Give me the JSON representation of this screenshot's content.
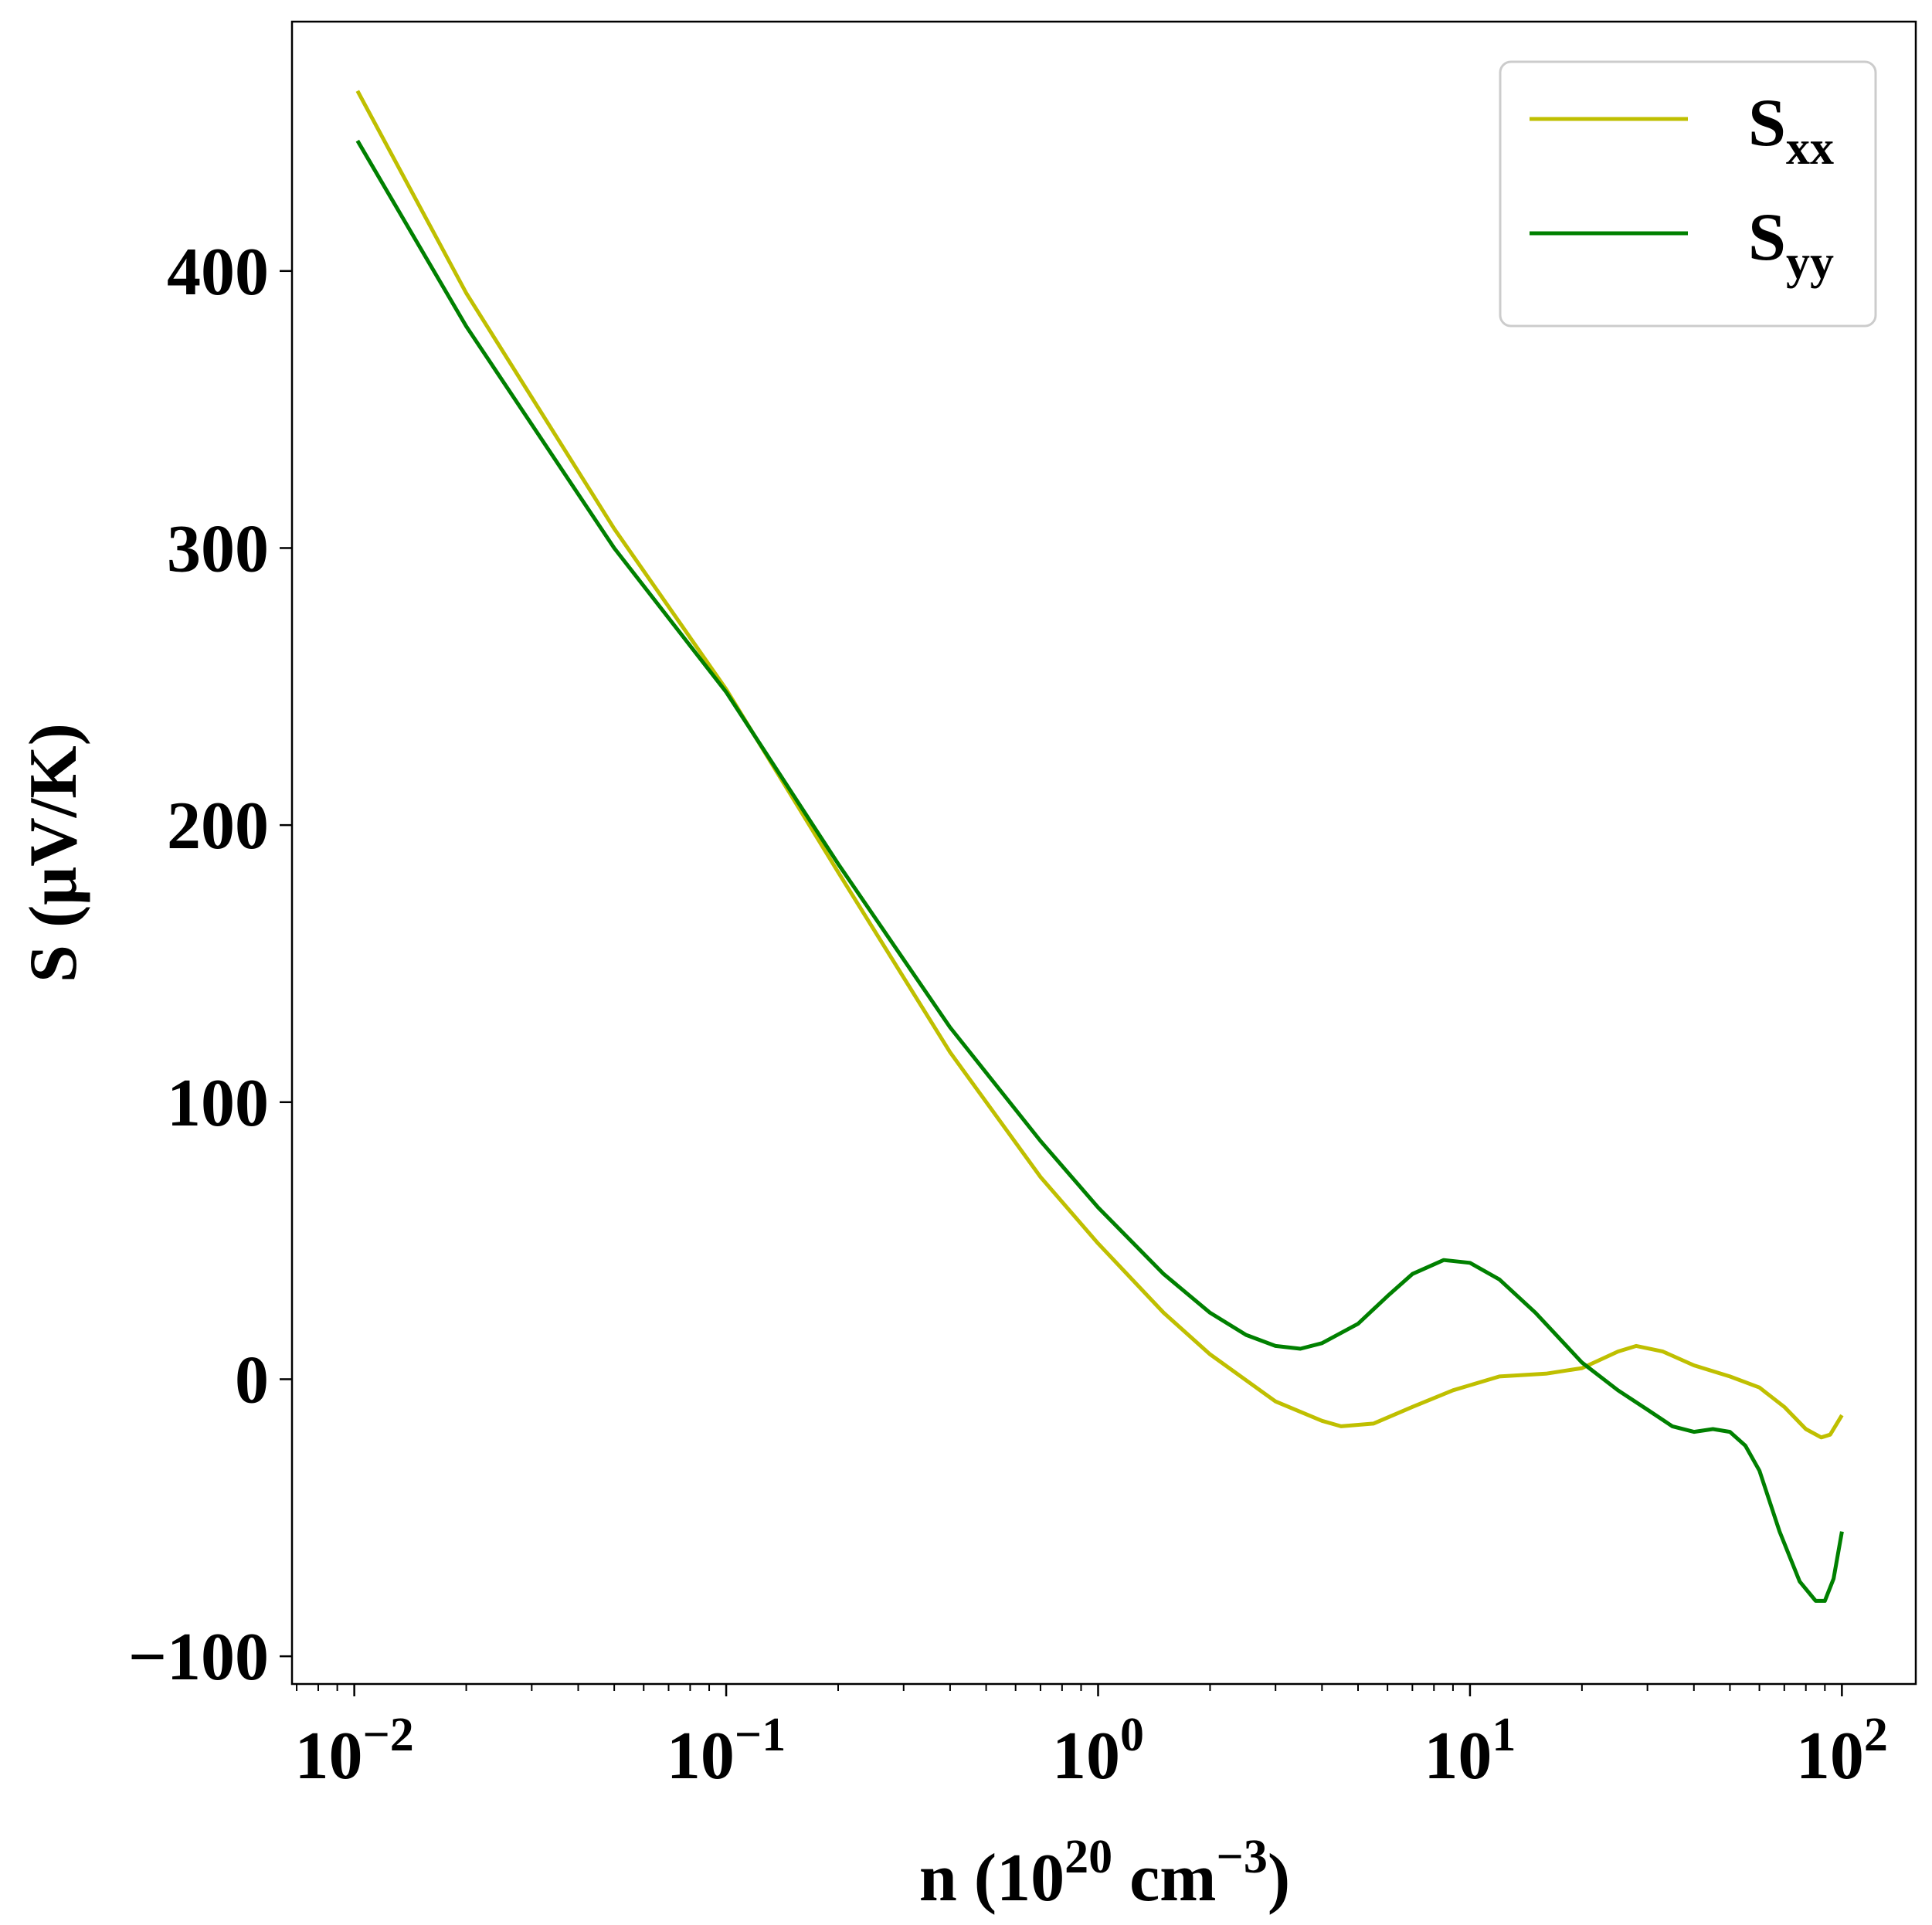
{
  "chart_data": {
    "type": "line",
    "x_scale": "log",
    "xlim": [
      0.0068,
      158
    ],
    "ylim": [
      -110,
      490
    ],
    "xlabel": {
      "base": "n (10",
      "sup1": "20",
      "mid": " cm",
      "sup2": "−3",
      "end": ")"
    },
    "ylabel": "S (μV/K)",
    "x_ticks": [
      {
        "value": 0.01,
        "base": "10",
        "exp": "−2"
      },
      {
        "value": 0.1,
        "base": "10",
        "exp": "−1"
      },
      {
        "value": 1,
        "base": "10",
        "exp": "0"
      },
      {
        "value": 10,
        "base": "10",
        "exp": "1"
      },
      {
        "value": 100,
        "base": "10",
        "exp": "2"
      }
    ],
    "y_ticks": [
      {
        "value": -100,
        "label": "−100"
      },
      {
        "value": 0,
        "label": "0"
      },
      {
        "value": 100,
        "label": "100"
      },
      {
        "value": 200,
        "label": "200"
      },
      {
        "value": 300,
        "label": "300"
      },
      {
        "value": 400,
        "label": "400"
      }
    ],
    "legend": {
      "placement": "top-right",
      "entries": [
        {
          "series": "Sxx",
          "base": "S",
          "sub": "xx"
        },
        {
          "series": "Syy",
          "base": "S",
          "sub": "yy"
        }
      ]
    },
    "series": [
      {
        "name": "Sxx",
        "color": "#bfbf00",
        "points": [
          [
            0.0102,
            465
          ],
          [
            0.02,
            392
          ],
          [
            0.05,
            307
          ],
          [
            0.1,
            249
          ],
          [
            0.2,
            183
          ],
          [
            0.4,
            118
          ],
          [
            0.7,
            73
          ],
          [
            1.0,
            49
          ],
          [
            1.5,
            24
          ],
          [
            2.0,
            9
          ],
          [
            3.0,
            -8
          ],
          [
            4.0,
            -15
          ],
          [
            4.5,
            -17
          ],
          [
            5.5,
            -16
          ],
          [
            7.0,
            -10
          ],
          [
            9.0,
            -4
          ],
          [
            12.0,
            1
          ],
          [
            16.0,
            2
          ],
          [
            20.0,
            4
          ],
          [
            25.0,
            10
          ],
          [
            28.0,
            12
          ],
          [
            33.0,
            10
          ],
          [
            40.0,
            5
          ],
          [
            50.0,
            1
          ],
          [
            60.0,
            -3
          ],
          [
            70.0,
            -10
          ],
          [
            80.0,
            -18
          ],
          [
            88.0,
            -21
          ],
          [
            93.0,
            -20
          ],
          [
            100.0,
            -13
          ]
        ]
      },
      {
        "name": "Syy",
        "color": "#008000",
        "points": [
          [
            0.0102,
            447
          ],
          [
            0.02,
            380
          ],
          [
            0.05,
            300
          ],
          [
            0.1,
            248
          ],
          [
            0.2,
            186
          ],
          [
            0.4,
            127
          ],
          [
            0.7,
            86
          ],
          [
            1.0,
            62
          ],
          [
            1.5,
            38
          ],
          [
            2.0,
            24
          ],
          [
            2.5,
            16
          ],
          [
            3.0,
            12
          ],
          [
            3.5,
            11
          ],
          [
            4.0,
            13
          ],
          [
            5.0,
            20
          ],
          [
            6.0,
            30
          ],
          [
            7.0,
            38
          ],
          [
            8.5,
            43
          ],
          [
            10.0,
            42
          ],
          [
            12.0,
            36
          ],
          [
            15.0,
            24
          ],
          [
            20.0,
            6
          ],
          [
            25.0,
            -4
          ],
          [
            30.0,
            -11
          ],
          [
            35.0,
            -17
          ],
          [
            40.0,
            -19
          ],
          [
            45.0,
            -18
          ],
          [
            50.0,
            -19
          ],
          [
            55.0,
            -24
          ],
          [
            60.0,
            -33
          ],
          [
            68.0,
            -55
          ],
          [
            77.0,
            -73
          ],
          [
            85.0,
            -80
          ],
          [
            90.0,
            -80
          ],
          [
            95.0,
            -72
          ],
          [
            100.0,
            -55
          ]
        ]
      }
    ]
  }
}
